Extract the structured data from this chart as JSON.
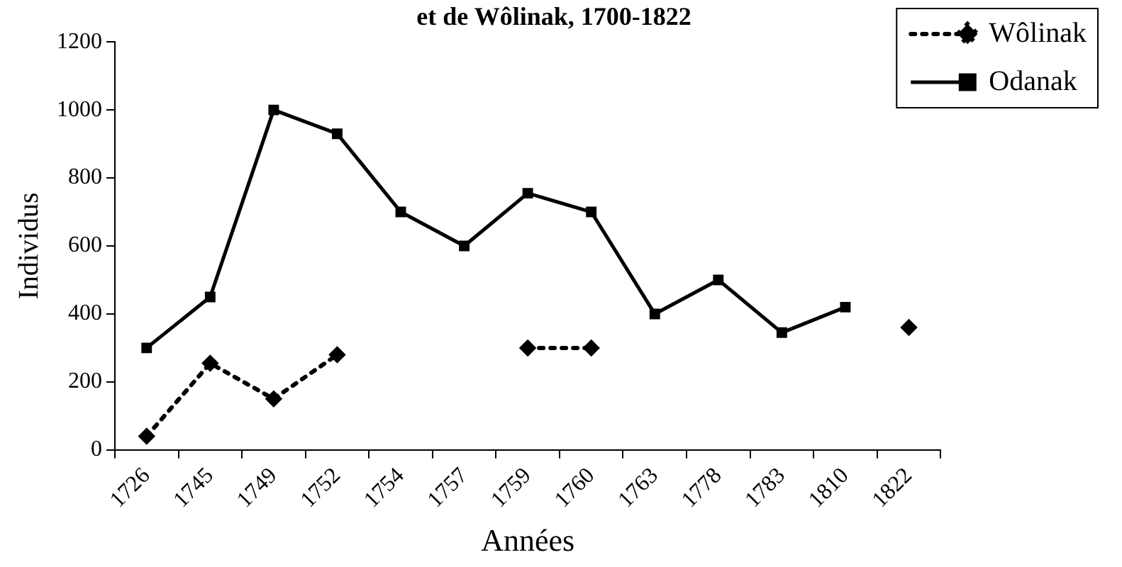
{
  "chart_data": {
    "type": "line",
    "title": "et de Wôlinak, 1700-1822",
    "xlabel": "Années",
    "ylabel": "Individus",
    "categories": [
      "1726",
      "1745",
      "1749",
      "1752",
      "1754",
      "1757",
      "1759",
      "1760",
      "1763",
      "1778",
      "1783",
      "1810",
      "1822"
    ],
    "series": [
      {
        "name": "Wôlinak",
        "color": "#000000",
        "marker": "diamond",
        "line_style": "dotted",
        "values": [
          40,
          255,
          150,
          280,
          null,
          null,
          300,
          300,
          null,
          null,
          null,
          null,
          360
        ]
      },
      {
        "name": "Odanak",
        "color": "#000000",
        "marker": "square",
        "line_style": "solid",
        "values": [
          300,
          450,
          1000,
          930,
          700,
          600,
          755,
          700,
          400,
          500,
          345,
          420,
          null
        ]
      }
    ],
    "ylim": [
      0,
      1200
    ],
    "yticks": [
      0,
      200,
      400,
      600,
      800,
      1000,
      1200
    ],
    "grid": false,
    "legend": "top right"
  }
}
